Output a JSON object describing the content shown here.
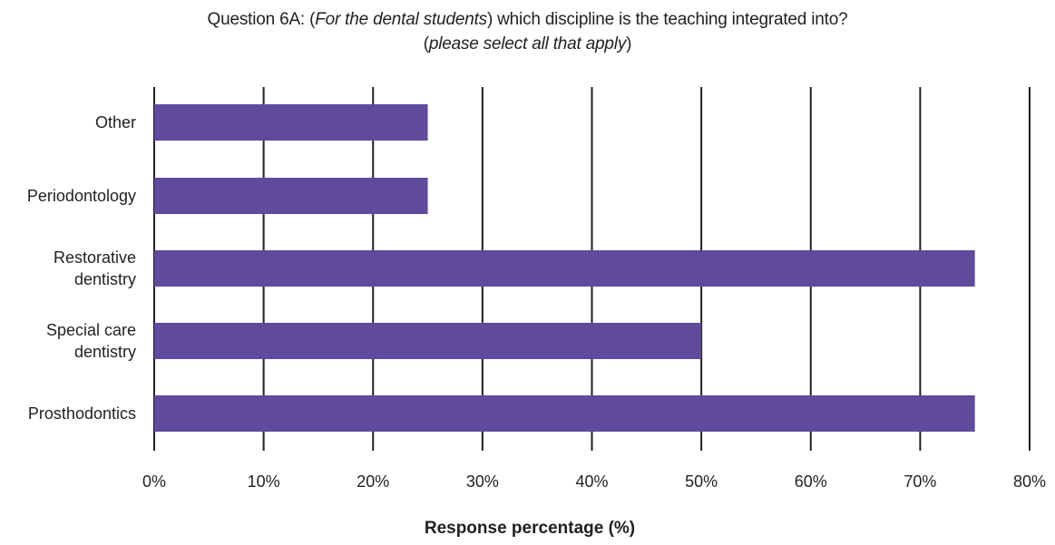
{
  "title": {
    "prefix": "Question 6A: (",
    "italic": "For the dental students",
    "suffix": ") which discipline is the teaching integrated into?",
    "line2_open": "(",
    "line2_italic": "please select all that apply",
    "line2_close": ")"
  },
  "chart_data": {
    "type": "bar",
    "orientation": "horizontal",
    "categories": [
      [
        "Other"
      ],
      [
        "Periodontology"
      ],
      [
        "Restorative",
        "dentistry"
      ],
      [
        "Special care",
        "dentistry"
      ],
      [
        "Prosthodontics"
      ]
    ],
    "values": [
      25,
      25,
      75,
      50,
      75
    ],
    "xlabel": "Response percentage (%)",
    "xlim": [
      0,
      80
    ],
    "xticks": [
      0,
      10,
      20,
      30,
      40,
      50,
      60,
      70,
      80
    ],
    "xtick_labels": [
      "0%",
      "10%",
      "20%",
      "30%",
      "40%",
      "50%",
      "60%",
      "70%",
      "80%"
    ],
    "grid": "vertical",
    "bar_color": "#5f4a9c",
    "grid_color": "#231f20"
  }
}
